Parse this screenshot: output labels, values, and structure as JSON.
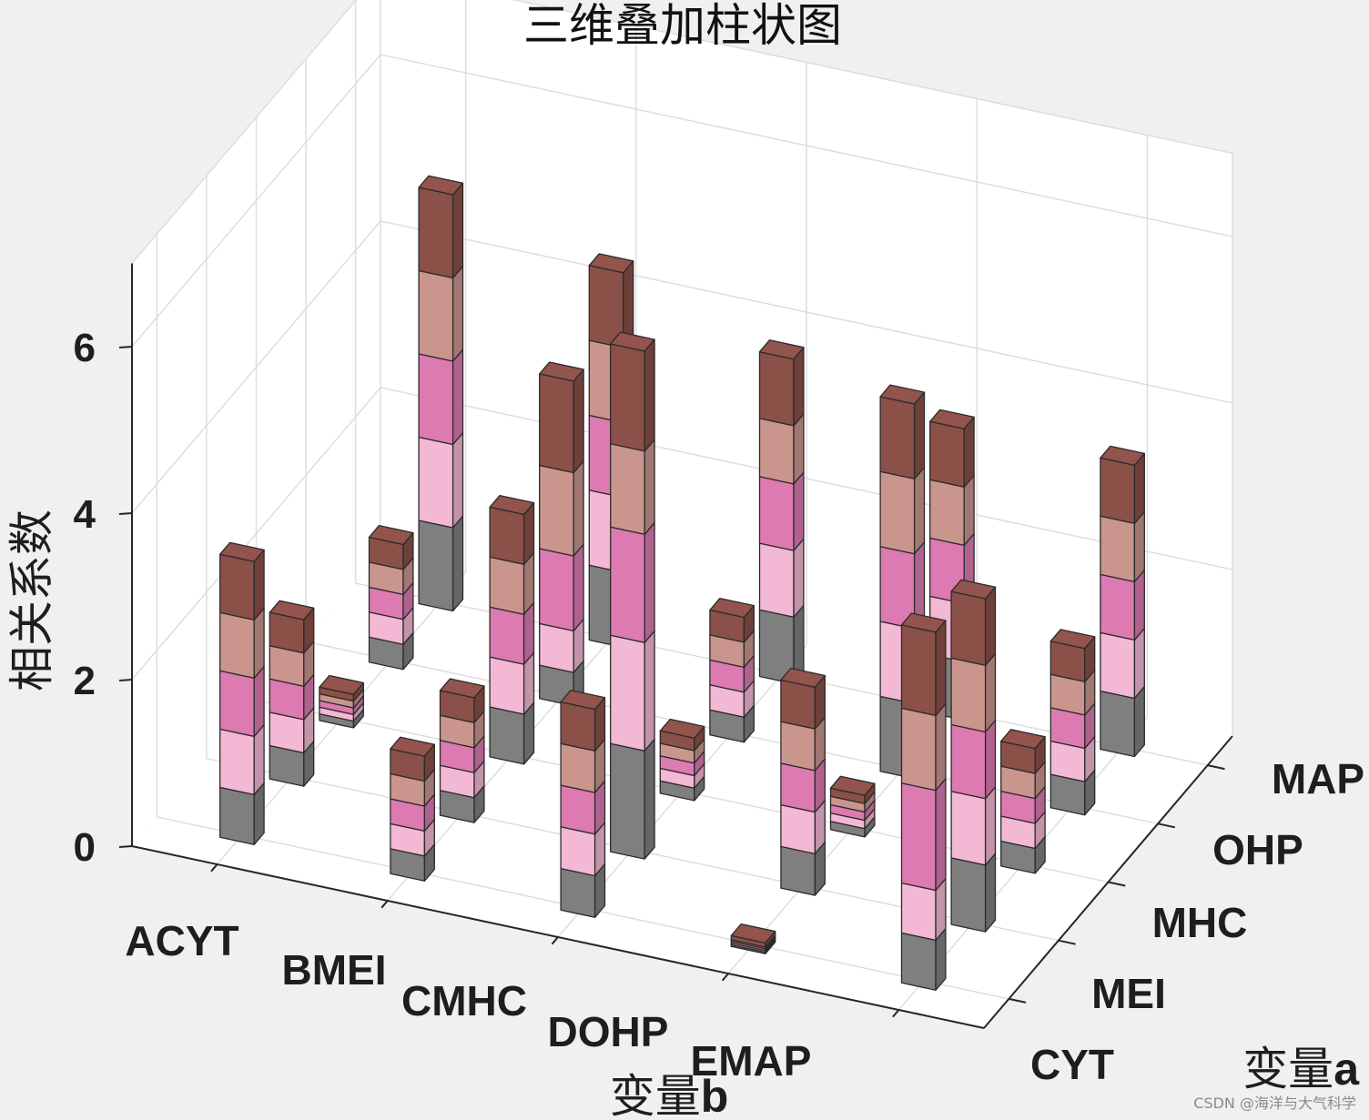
{
  "chart_data": {
    "type": "bar3-stacked",
    "title": "三维叠加柱状图",
    "xlabel": "变量b",
    "ylabel": "变量a",
    "zlabel": "相关系数",
    "x_categories": [
      "ACYT",
      "BMEI",
      "CMHC",
      "DOHP",
      "EMAP"
    ],
    "y_categories": [
      "CYT",
      "MEI",
      "MHC",
      "OHP",
      "MAP"
    ],
    "z_ticks": [
      0,
      2,
      4,
      6
    ],
    "zlim": [
      0,
      7
    ],
    "grid": true,
    "legend": "none",
    "series_colors": [
      "#7f7f7f",
      "#f3b8d3",
      "#dc7ab1",
      "#c9958d",
      "#8b5048"
    ],
    "bars": [
      {
        "x": "ACYT",
        "y": "CYT",
        "values": [
          0.6,
          0.7,
          0.7,
          0.7,
          0.7
        ]
      },
      {
        "x": "ACYT",
        "y": "MEI",
        "values": [
          0.4,
          0.4,
          0.4,
          0.4,
          0.4
        ]
      },
      {
        "x": "ACYT",
        "y": "MHC",
        "values": [
          0.08,
          0.08,
          0.08,
          0.08,
          0.08
        ]
      },
      {
        "x": "ACYT",
        "y": "OHP",
        "values": [
          0.3,
          0.3,
          0.3,
          0.3,
          0.3
        ]
      },
      {
        "x": "ACYT",
        "y": "MAP",
        "values": [
          1.0,
          1.0,
          1.0,
          1.0,
          1.0
        ]
      },
      {
        "x": "BMEI",
        "y": "CYT",
        "values": [
          0.3,
          0.3,
          0.3,
          0.3,
          0.3
        ]
      },
      {
        "x": "BMEI",
        "y": "MEI",
        "values": [
          0.3,
          0.3,
          0.3,
          0.3,
          0.3
        ]
      },
      {
        "x": "BMEI",
        "y": "MHC",
        "values": [
          0.6,
          0.6,
          0.6,
          0.6,
          0.6
        ]
      },
      {
        "x": "BMEI",
        "y": "OHP",
        "values": [
          0.4,
          0.5,
          0.9,
          1.0,
          1.1
        ]
      },
      {
        "x": "BMEI",
        "y": "MAP",
        "values": [
          0.9,
          0.9,
          0.9,
          0.9,
          0.9
        ]
      },
      {
        "x": "CMHC",
        "y": "CYT",
        "values": [
          0.5,
          0.5,
          0.5,
          0.5,
          0.5
        ]
      },
      {
        "x": "CMHC",
        "y": "MEI",
        "values": [
          1.3,
          1.3,
          1.3,
          1.0,
          1.2
        ]
      },
      {
        "x": "CMHC",
        "y": "MHC",
        "values": [
          0.15,
          0.15,
          0.15,
          0.15,
          0.15
        ]
      },
      {
        "x": "CMHC",
        "y": "OHP",
        "values": [
          0.3,
          0.3,
          0.3,
          0.3,
          0.3
        ]
      },
      {
        "x": "CMHC",
        "y": "MAP",
        "values": [
          0.8,
          0.8,
          0.8,
          0.7,
          0.8
        ]
      },
      {
        "x": "DOHP",
        "y": "CYT",
        "values": [
          0.02,
          0.02,
          0.02,
          0.02,
          0.05
        ]
      },
      {
        "x": "DOHP",
        "y": "MEI",
        "values": [
          0.5,
          0.5,
          0.5,
          0.5,
          0.5
        ]
      },
      {
        "x": "DOHP",
        "y": "MHC",
        "values": [
          0.1,
          0.1,
          0.1,
          0.1,
          0.1
        ]
      },
      {
        "x": "DOHP",
        "y": "OHP",
        "values": [
          0.9,
          0.9,
          0.9,
          0.9,
          0.9
        ]
      },
      {
        "x": "DOHP",
        "y": "MAP",
        "values": [
          0.7,
          0.7,
          0.7,
          0.7,
          0.7
        ]
      },
      {
        "x": "EMAP",
        "y": "CYT",
        "values": [
          0.6,
          0.6,
          1.2,
          0.9,
          1.0
        ]
      },
      {
        "x": "EMAP",
        "y": "MEI",
        "values": [
          0.8,
          0.8,
          0.8,
          0.8,
          0.8
        ]
      },
      {
        "x": "EMAP",
        "y": "MHC",
        "values": [
          0.3,
          0.3,
          0.3,
          0.3,
          0.3
        ]
      },
      {
        "x": "EMAP",
        "y": "OHP",
        "values": [
          0.4,
          0.4,
          0.4,
          0.4,
          0.4
        ]
      },
      {
        "x": "EMAP",
        "y": "MAP",
        "values": [
          0.7,
          0.7,
          0.7,
          0.7,
          0.7
        ]
      }
    ]
  },
  "watermark": "CSDN @海洋与大气科学"
}
